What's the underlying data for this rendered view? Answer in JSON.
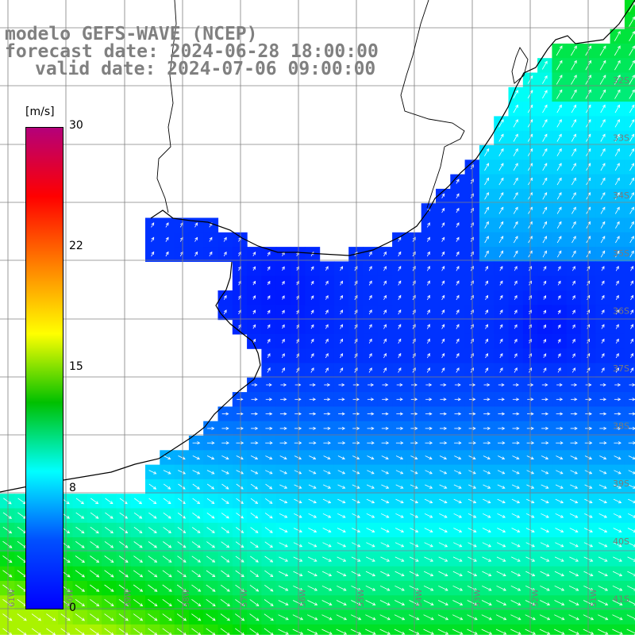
{
  "title": {
    "line1": "modelo GEFS-WAVE (NCEP)",
    "line2": "forecast date: 2024-06-28 18:00:00",
    "line3": "valid date: 2024-07-06 09:00:00"
  },
  "colorbar": {
    "unit": "[m/s]",
    "ticks": [
      "30",
      "22",
      "15",
      "8",
      "0"
    ],
    "colors": [
      "#b4007a",
      "#ff0000",
      "#ff8000",
      "#ffff00",
      "#00c000",
      "#00ffff",
      "#0050ff",
      "#0000ff"
    ]
  },
  "grid": {
    "lat_labels": [
      "32S",
      "33S",
      "34S",
      "35S",
      "36S",
      "37S",
      "38S",
      "39S",
      "40S",
      "41S"
    ],
    "lon_labels": [
      "61W",
      "60W",
      "59W",
      "58W",
      "57W",
      "56W",
      "55W",
      "54W",
      "53W",
      "52W",
      "51W"
    ]
  },
  "map": {
    "land_color": "#ffffff",
    "coast_color": "#000000",
    "grid_color": "#808080",
    "arrow_color": "#ffffff",
    "field": "wind speed (m/s)",
    "wind_regimes": [
      "north: weak winds 2-5 m/s from south-west",
      "center: light winds near 36S 53W",
      "south: stronger winds 8-13 m/s from north-west"
    ]
  }
}
